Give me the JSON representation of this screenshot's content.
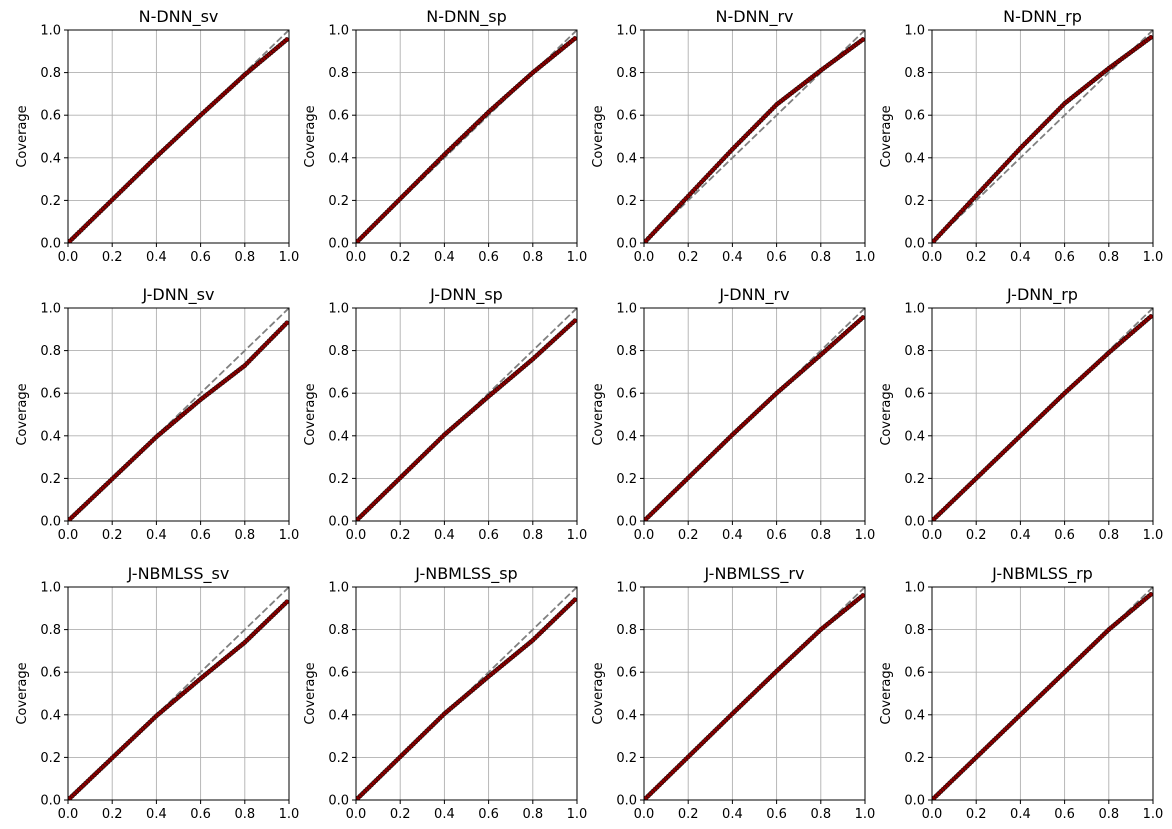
{
  "chart_data": {
    "type": "scatter",
    "layout": "3x4 grid of calibration plots",
    "ylabel": "Coverage",
    "xlim": [
      0,
      1
    ],
    "ylim": [
      0,
      1
    ],
    "xticks": [
      "0.0",
      "0.2",
      "0.4",
      "0.6",
      "0.8",
      "1.0"
    ],
    "yticks": [
      "0.0",
      "0.2",
      "0.4",
      "0.6",
      "0.8",
      "1.0"
    ],
    "grid": true,
    "reference_line": {
      "x": [
        0,
        1
      ],
      "y": [
        0,
        1
      ],
      "style": "dashed",
      "color": "#808080"
    },
    "point_color": "#8b0000",
    "point_edge_color": "#000000",
    "line_color": "#808080",
    "nominal_levels": [
      0.01,
      0.99
    ],
    "panels": [
      {
        "title": "N-DNN_sv",
        "coverage_at": {
          "0.0": 0.0,
          "0.4": 0.405,
          "0.6": 0.6,
          "0.8": 0.79,
          "0.99": 0.955
        }
      },
      {
        "title": "N-DNN_sp",
        "coverage_at": {
          "0.0": 0.0,
          "0.4": 0.415,
          "0.6": 0.615,
          "0.8": 0.8,
          "0.99": 0.96
        }
      },
      {
        "title": "N-DNN_rv",
        "coverage_at": {
          "0.0": 0.0,
          "0.4": 0.44,
          "0.6": 0.65,
          "0.8": 0.81,
          "0.99": 0.955
        }
      },
      {
        "title": "N-DNN_rp",
        "coverage_at": {
          "0.0": 0.0,
          "0.4": 0.445,
          "0.6": 0.655,
          "0.8": 0.82,
          "0.99": 0.965
        }
      },
      {
        "title": "J-DNN_sv",
        "coverage_at": {
          "0.0": 0.0,
          "0.4": 0.395,
          "0.6": 0.57,
          "0.8": 0.73,
          "0.99": 0.93
        }
      },
      {
        "title": "J-DNN_sp",
        "coverage_at": {
          "0.0": 0.0,
          "0.4": 0.405,
          "0.6": 0.585,
          "0.8": 0.76,
          "0.99": 0.94
        }
      },
      {
        "title": "J-DNN_rv",
        "coverage_at": {
          "0.0": 0.0,
          "0.4": 0.405,
          "0.6": 0.6,
          "0.8": 0.78,
          "0.99": 0.955
        }
      },
      {
        "title": "J-DNN_rp",
        "coverage_at": {
          "0.0": 0.0,
          "0.4": 0.4,
          "0.6": 0.6,
          "0.8": 0.79,
          "0.99": 0.96
        }
      },
      {
        "title": "J-NBMLSS_sv",
        "coverage_at": {
          "0.0": 0.0,
          "0.4": 0.395,
          "0.6": 0.57,
          "0.8": 0.74,
          "0.99": 0.93
        }
      },
      {
        "title": "J-NBMLSS_sp",
        "coverage_at": {
          "0.0": 0.0,
          "0.4": 0.405,
          "0.6": 0.58,
          "0.8": 0.75,
          "0.99": 0.94
        }
      },
      {
        "title": "J-NBMLSS_rv",
        "coverage_at": {
          "0.0": 0.0,
          "0.4": 0.405,
          "0.6": 0.605,
          "0.8": 0.8,
          "0.99": 0.96
        }
      },
      {
        "title": "J-NBMLSS_rp",
        "coverage_at": {
          "0.0": 0.0,
          "0.4": 0.4,
          "0.6": 0.6,
          "0.8": 0.8,
          "0.99": 0.965
        }
      }
    ]
  }
}
